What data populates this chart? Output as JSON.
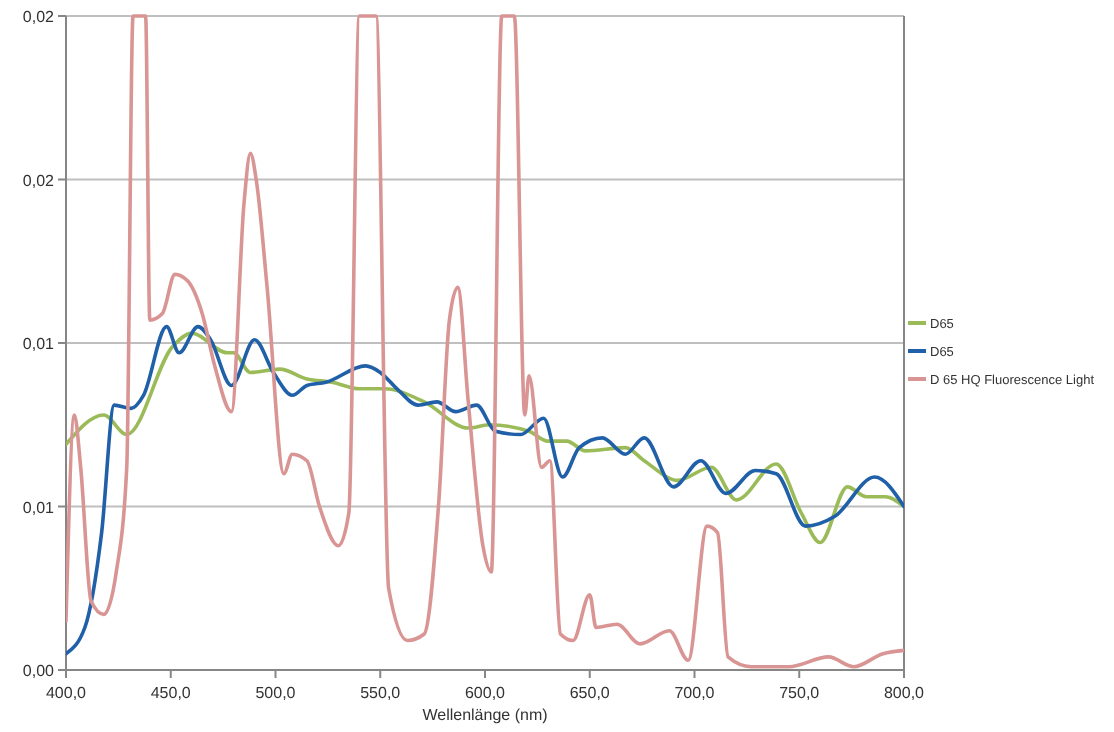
{
  "chart_data": {
    "type": "line",
    "xlabel": "Wellenlänge (nm)",
    "xlim": [
      400,
      800
    ],
    "xticks": [
      {
        "value": 400,
        "label": "400,0"
      },
      {
        "value": 450,
        "label": "450,0"
      },
      {
        "value": 500,
        "label": "500,0"
      },
      {
        "value": 550,
        "label": "550,0"
      },
      {
        "value": 600,
        "label": "600,0"
      },
      {
        "value": 650,
        "label": "650,0"
      },
      {
        "value": 700,
        "label": "700,0"
      },
      {
        "value": 750,
        "label": "750,0"
      },
      {
        "value": 800,
        "label": "800,0"
      }
    ],
    "ylim": [
      0,
      0.02
    ],
    "yticks": [
      {
        "value": 0,
        "label": "0,00"
      },
      {
        "value": 0.005,
        "label": "0,01"
      },
      {
        "value": 0.01,
        "label": "0,01"
      },
      {
        "value": 0.015,
        "label": "0,02"
      },
      {
        "value": 0.02,
        "label": "0,02"
      }
    ],
    "grid": "y",
    "legend": "right",
    "marker": "none",
    "line_style": "solid",
    "series": [
      {
        "name": "D65",
        "color": "#9bbb59",
        "x": [
          400,
          418,
          429,
          451,
          460,
          477,
          480,
          488,
          502,
          515,
          527,
          540,
          552,
          571,
          592,
          602,
          621,
          630,
          639,
          648,
          667,
          676,
          692,
          708,
          720,
          739,
          751,
          760,
          773,
          782,
          791,
          800
        ],
        "values": [
          0.0069,
          0.0078,
          0.0072,
          0.0099,
          0.0103,
          0.0097,
          0.0097,
          0.0091,
          0.0092,
          0.0089,
          0.0088,
          0.0086,
          0.0086,
          0.0082,
          0.0074,
          0.0075,
          0.0073,
          0.007,
          0.007,
          0.0067,
          0.0068,
          0.0064,
          0.0058,
          0.0062,
          0.0052,
          0.0063,
          0.0048,
          0.0039,
          0.0056,
          0.0053,
          0.0053,
          0.005
        ]
      },
      {
        "name": "D65",
        "color": "#2060a8",
        "x": [
          400,
          409,
          417,
          423,
          431,
          437,
          448,
          454,
          463,
          469,
          479,
          490,
          499,
          508,
          515,
          524,
          543,
          550,
          558,
          568,
          577,
          586,
          596,
          605,
          617,
          628,
          637,
          645,
          656,
          667,
          676,
          690,
          703,
          715,
          729,
          739,
          753,
          767,
          786,
          800
        ],
        "values": [
          0.0005,
          0.0013,
          0.0042,
          0.0081,
          0.008,
          0.0084,
          0.0105,
          0.0097,
          0.0105,
          0.0101,
          0.0087,
          0.0101,
          0.0091,
          0.0084,
          0.0087,
          0.0088,
          0.0093,
          0.0091,
          0.0086,
          0.0081,
          0.0082,
          0.0079,
          0.0081,
          0.0073,
          0.0072,
          0.0077,
          0.0059,
          0.0068,
          0.0071,
          0.0066,
          0.0071,
          0.0056,
          0.0064,
          0.0054,
          0.0061,
          0.006,
          0.0044,
          0.0047,
          0.0059,
          0.005
        ]
      },
      {
        "name": "D 65 HQ Fluorescence Light",
        "color": "#d99594",
        "x": [
          400,
          404,
          407,
          412,
          418,
          424,
          429,
          432,
          438,
          440,
          446,
          452,
          458,
          465,
          471,
          479,
          485,
          488,
          491,
          496,
          504,
          508,
          515,
          521,
          530,
          535,
          540,
          548,
          554,
          563,
          571,
          578,
          583,
          587,
          592,
          599,
          603,
          608,
          614,
          619,
          621,
          627,
          631,
          636,
          642,
          650,
          653,
          663,
          674,
          688,
          697,
          706,
          711,
          716,
          727,
          745,
          764,
          776,
          790,
          800
        ],
        "values": [
          0.0015,
          0.0078,
          0.0062,
          0.0021,
          0.0017,
          0.003,
          0.0062,
          0.02,
          0.02,
          0.0107,
          0.0109,
          0.0121,
          0.0119,
          0.0109,
          0.0093,
          0.0079,
          0.0143,
          0.0158,
          0.0149,
          0.0117,
          0.006,
          0.0066,
          0.0064,
          0.005,
          0.0038,
          0.0048,
          0.02,
          0.02,
          0.0025,
          0.0009,
          0.0011,
          0.0052,
          0.0107,
          0.0117,
          0.0082,
          0.0038,
          0.003,
          0.02,
          0.02,
          0.0078,
          0.009,
          0.0062,
          0.0064,
          0.0011,
          0.0009,
          0.0023,
          0.0013,
          0.0014,
          0.0008,
          0.0012,
          0.0003,
          0.0044,
          0.0042,
          0.0004,
          0.0001,
          0.0001,
          0.0004,
          0.0001,
          0.0005,
          0.0006
        ]
      }
    ]
  }
}
